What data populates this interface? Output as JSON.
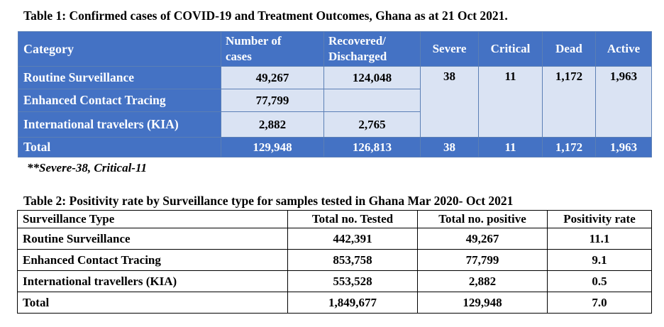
{
  "table1": {
    "caption": "Table 1: Confirmed cases of COVID-19 and Treatment Outcomes, Ghana as at 21 Oct 2021.",
    "headers": {
      "category": "Category",
      "cases_line1": "Number of",
      "cases_line2": "cases",
      "recovered_line1": "Recovered/",
      "recovered_line2": "Discharged",
      "severe": "Severe",
      "critical": "Critical",
      "dead": "Dead",
      "active": "Active"
    },
    "rows": [
      {
        "category": "Routine Surveillance",
        "cases": "49,267",
        "recovered": "124,048"
      },
      {
        "category": "Enhanced Contact Tracing",
        "cases": "77,799",
        "recovered": ""
      },
      {
        "category": "International travelers (KIA)",
        "cases": "2,882",
        "recovered": "2,765"
      }
    ],
    "merged": {
      "severe": "38",
      "critical": "11",
      "dead": "1,172",
      "active": "1,963"
    },
    "total": {
      "label": "Total",
      "cases": "129,948",
      "recovered": "126,813",
      "severe": "38",
      "critical": "11",
      "dead": "1,172",
      "active": "1,963"
    },
    "note": "**Severe-38, Critical-11",
    "colors": {
      "header_bg": "#4472c4",
      "cell_bg": "#dae3f3",
      "header_text": "#ffffff"
    }
  },
  "table2": {
    "caption": "Table 2: Positivity rate by Surveillance type for samples tested in Ghana Mar 2020- Oct 2021",
    "headers": [
      "Surveillance Type",
      "Total no. Tested",
      "Total no. positive",
      "Positivity rate"
    ],
    "rows": [
      [
        "Routine Surveillance",
        "442,391",
        "49,267",
        "11.1"
      ],
      [
        "Enhanced Contact Tracing",
        "853,758",
        "77,799",
        "9.1"
      ],
      [
        "International travellers (KIA)",
        "553,528",
        "2,882",
        "0.5"
      ],
      [
        "Total",
        "1,849,677",
        "129,948",
        "7.0"
      ]
    ]
  }
}
